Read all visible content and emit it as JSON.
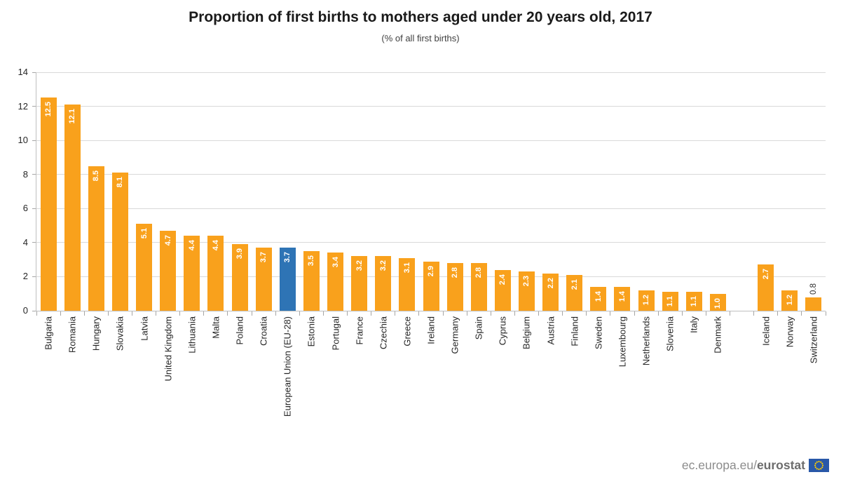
{
  "footer": {
    "url_prefix": "ec.europa.eu/",
    "url_bold": "eurostat",
    "flag_icon": "eu-flag-icon"
  },
  "chart_data": {
    "type": "bar",
    "title": "Proportion of first births to mothers aged under 20 years old, 2017",
    "subtitle": "(% of all first births)",
    "xlabel": "",
    "ylabel": "",
    "ylim": [
      0,
      14
    ],
    "yticks": [
      0,
      2,
      4,
      6,
      8,
      10,
      12,
      14
    ],
    "grid": true,
    "legend": false,
    "colors": {
      "bar": "#F9A11C",
      "highlight": "#2E74B5",
      "grid": "#D9D9D9",
      "axis": "#BFBFBF",
      "value_label_in": "#FFFFFF",
      "value_label_out": "#333333"
    },
    "points": [
      {
        "label": "Bulgaria",
        "value": 12.5
      },
      {
        "label": "Romania",
        "value": 12.1
      },
      {
        "label": "Hungary",
        "value": 8.5
      },
      {
        "label": "Slovakia",
        "value": 8.1
      },
      {
        "label": "Latvia",
        "value": 5.1
      },
      {
        "label": "United Kingdom",
        "value": 4.7
      },
      {
        "label": "Lithuania",
        "value": 4.4
      },
      {
        "label": "Malta",
        "value": 4.4
      },
      {
        "label": "Poland",
        "value": 3.9
      },
      {
        "label": "Croatia",
        "value": 3.7
      },
      {
        "label": "European Union (EU-28)",
        "value": 3.7,
        "highlight": true
      },
      {
        "label": "Estonia",
        "value": 3.5
      },
      {
        "label": "Portugal",
        "value": 3.4
      },
      {
        "label": "France",
        "value": 3.2
      },
      {
        "label": "Czechia",
        "value": 3.2
      },
      {
        "label": "Greece",
        "value": 3.1
      },
      {
        "label": "Ireland",
        "value": 2.9
      },
      {
        "label": "Germany",
        "value": 2.8
      },
      {
        "label": "Spain",
        "value": 2.8
      },
      {
        "label": "Cyprus",
        "value": 2.4
      },
      {
        "label": "Belgium",
        "value": 2.3
      },
      {
        "label": "Austria",
        "value": 2.2
      },
      {
        "label": "Finland",
        "value": 2.1
      },
      {
        "label": "Sweden",
        "value": 1.4
      },
      {
        "label": "Luxembourg",
        "value": 1.4
      },
      {
        "label": "Netherlands",
        "value": 1.2
      },
      {
        "label": "Slovenia",
        "value": 1.1
      },
      {
        "label": "Italy",
        "value": 1.1
      },
      {
        "label": "Denmark",
        "value": 1.0
      },
      {
        "label": "",
        "value": null
      },
      {
        "label": "Iceland",
        "value": 2.7
      },
      {
        "label": "Norway",
        "value": 1.2
      },
      {
        "label": "Switzerland",
        "value": 0.8,
        "value_label_outside": true
      }
    ]
  }
}
